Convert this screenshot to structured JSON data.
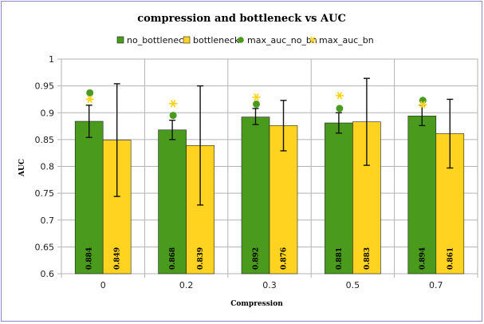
{
  "chart_data": {
    "type": "bar",
    "title": "compression and bottleneck vs AUC",
    "xlabel": "Compression",
    "ylabel": "AUC",
    "categories": [
      "0",
      "0.2",
      "0.3",
      "0.5",
      "0.7"
    ],
    "ylim": [
      0.6,
      1
    ],
    "yticks": [
      "0.6",
      "0.65",
      "0.7",
      "0.75",
      "0.8",
      "0.85",
      "0.9",
      "0.95",
      "1"
    ],
    "grid": true,
    "legend_position": "top",
    "series": [
      {
        "name": "no_bottleneck",
        "kind": "bar",
        "color": "#4a9a1e",
        "values": [
          0.884,
          0.868,
          0.892,
          0.881,
          0.894
        ],
        "value_labels": [
          "0.884",
          "0.868",
          "0.892",
          "0.881",
          "0.894"
        ],
        "error_low": [
          0.854,
          0.85,
          0.878,
          0.862,
          0.876
        ],
        "error_high": [
          0.914,
          0.886,
          0.908,
          0.9,
          0.914
        ]
      },
      {
        "name": "bottleneck",
        "kind": "bar",
        "color": "#ffd320",
        "values": [
          0.849,
          0.839,
          0.876,
          0.883,
          0.861
        ],
        "value_labels": [
          "0.849",
          "0.839",
          "0.876",
          "0.883",
          "0.861"
        ],
        "error_low": [
          0.744,
          0.728,
          0.829,
          0.802,
          0.797
        ],
        "error_high": [
          0.954,
          0.95,
          0.923,
          0.964,
          0.925
        ]
      },
      {
        "name": "max_auc_no_bn",
        "kind": "marker",
        "marker": "circle",
        "color": "#4a9a1e",
        "values": [
          0.937,
          0.895,
          0.916,
          0.908,
          0.923
        ]
      },
      {
        "name": "max_auc_bn",
        "kind": "marker",
        "marker": "star",
        "color": "#ffd320",
        "values": [
          0.925,
          0.917,
          0.929,
          0.932,
          0.915
        ]
      }
    ]
  }
}
